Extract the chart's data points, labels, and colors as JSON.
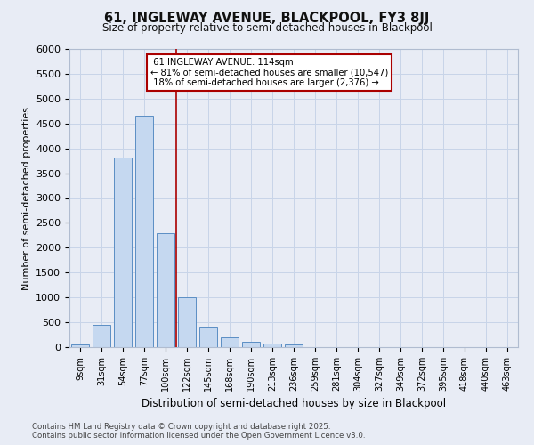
{
  "title1": "61, INGLEWAY AVENUE, BLACKPOOL, FY3 8JJ",
  "title2": "Size of property relative to semi-detached houses in Blackpool",
  "xlabel": "Distribution of semi-detached houses by size in Blackpool",
  "ylabel": "Number of semi-detached properties",
  "categories": [
    "9sqm",
    "31sqm",
    "54sqm",
    "77sqm",
    "100sqm",
    "122sqm",
    "145sqm",
    "168sqm",
    "190sqm",
    "213sqm",
    "236sqm",
    "259sqm",
    "281sqm",
    "304sqm",
    "327sqm",
    "349sqm",
    "372sqm",
    "395sqm",
    "418sqm",
    "440sqm",
    "463sqm"
  ],
  "values": [
    50,
    440,
    3820,
    4660,
    2300,
    1000,
    410,
    200,
    100,
    70,
    50,
    0,
    0,
    0,
    0,
    0,
    0,
    0,
    0,
    0,
    0
  ],
  "bar_color": "#c5d8f0",
  "bar_edge_color": "#5b8ec4",
  "pct_smaller": 81,
  "pct_larger": 18,
  "count_smaller": 10547,
  "count_larger": 2376,
  "property_label": "61 INGLEWAY AVENUE: 114sqm",
  "vline_x_index": 4.5,
  "annotation_box_color": "#ffffff",
  "annotation_box_edge": "#aa0000",
  "vline_color": "#aa0000",
  "grid_color": "#c8d4e8",
  "bg_color": "#e8ecf5",
  "ylim": [
    0,
    6000
  ],
  "yticks": [
    0,
    500,
    1000,
    1500,
    2000,
    2500,
    3000,
    3500,
    4000,
    4500,
    5000,
    5500,
    6000
  ],
  "footer1": "Contains HM Land Registry data © Crown copyright and database right 2025.",
  "footer2": "Contains public sector information licensed under the Open Government Licence v3.0."
}
